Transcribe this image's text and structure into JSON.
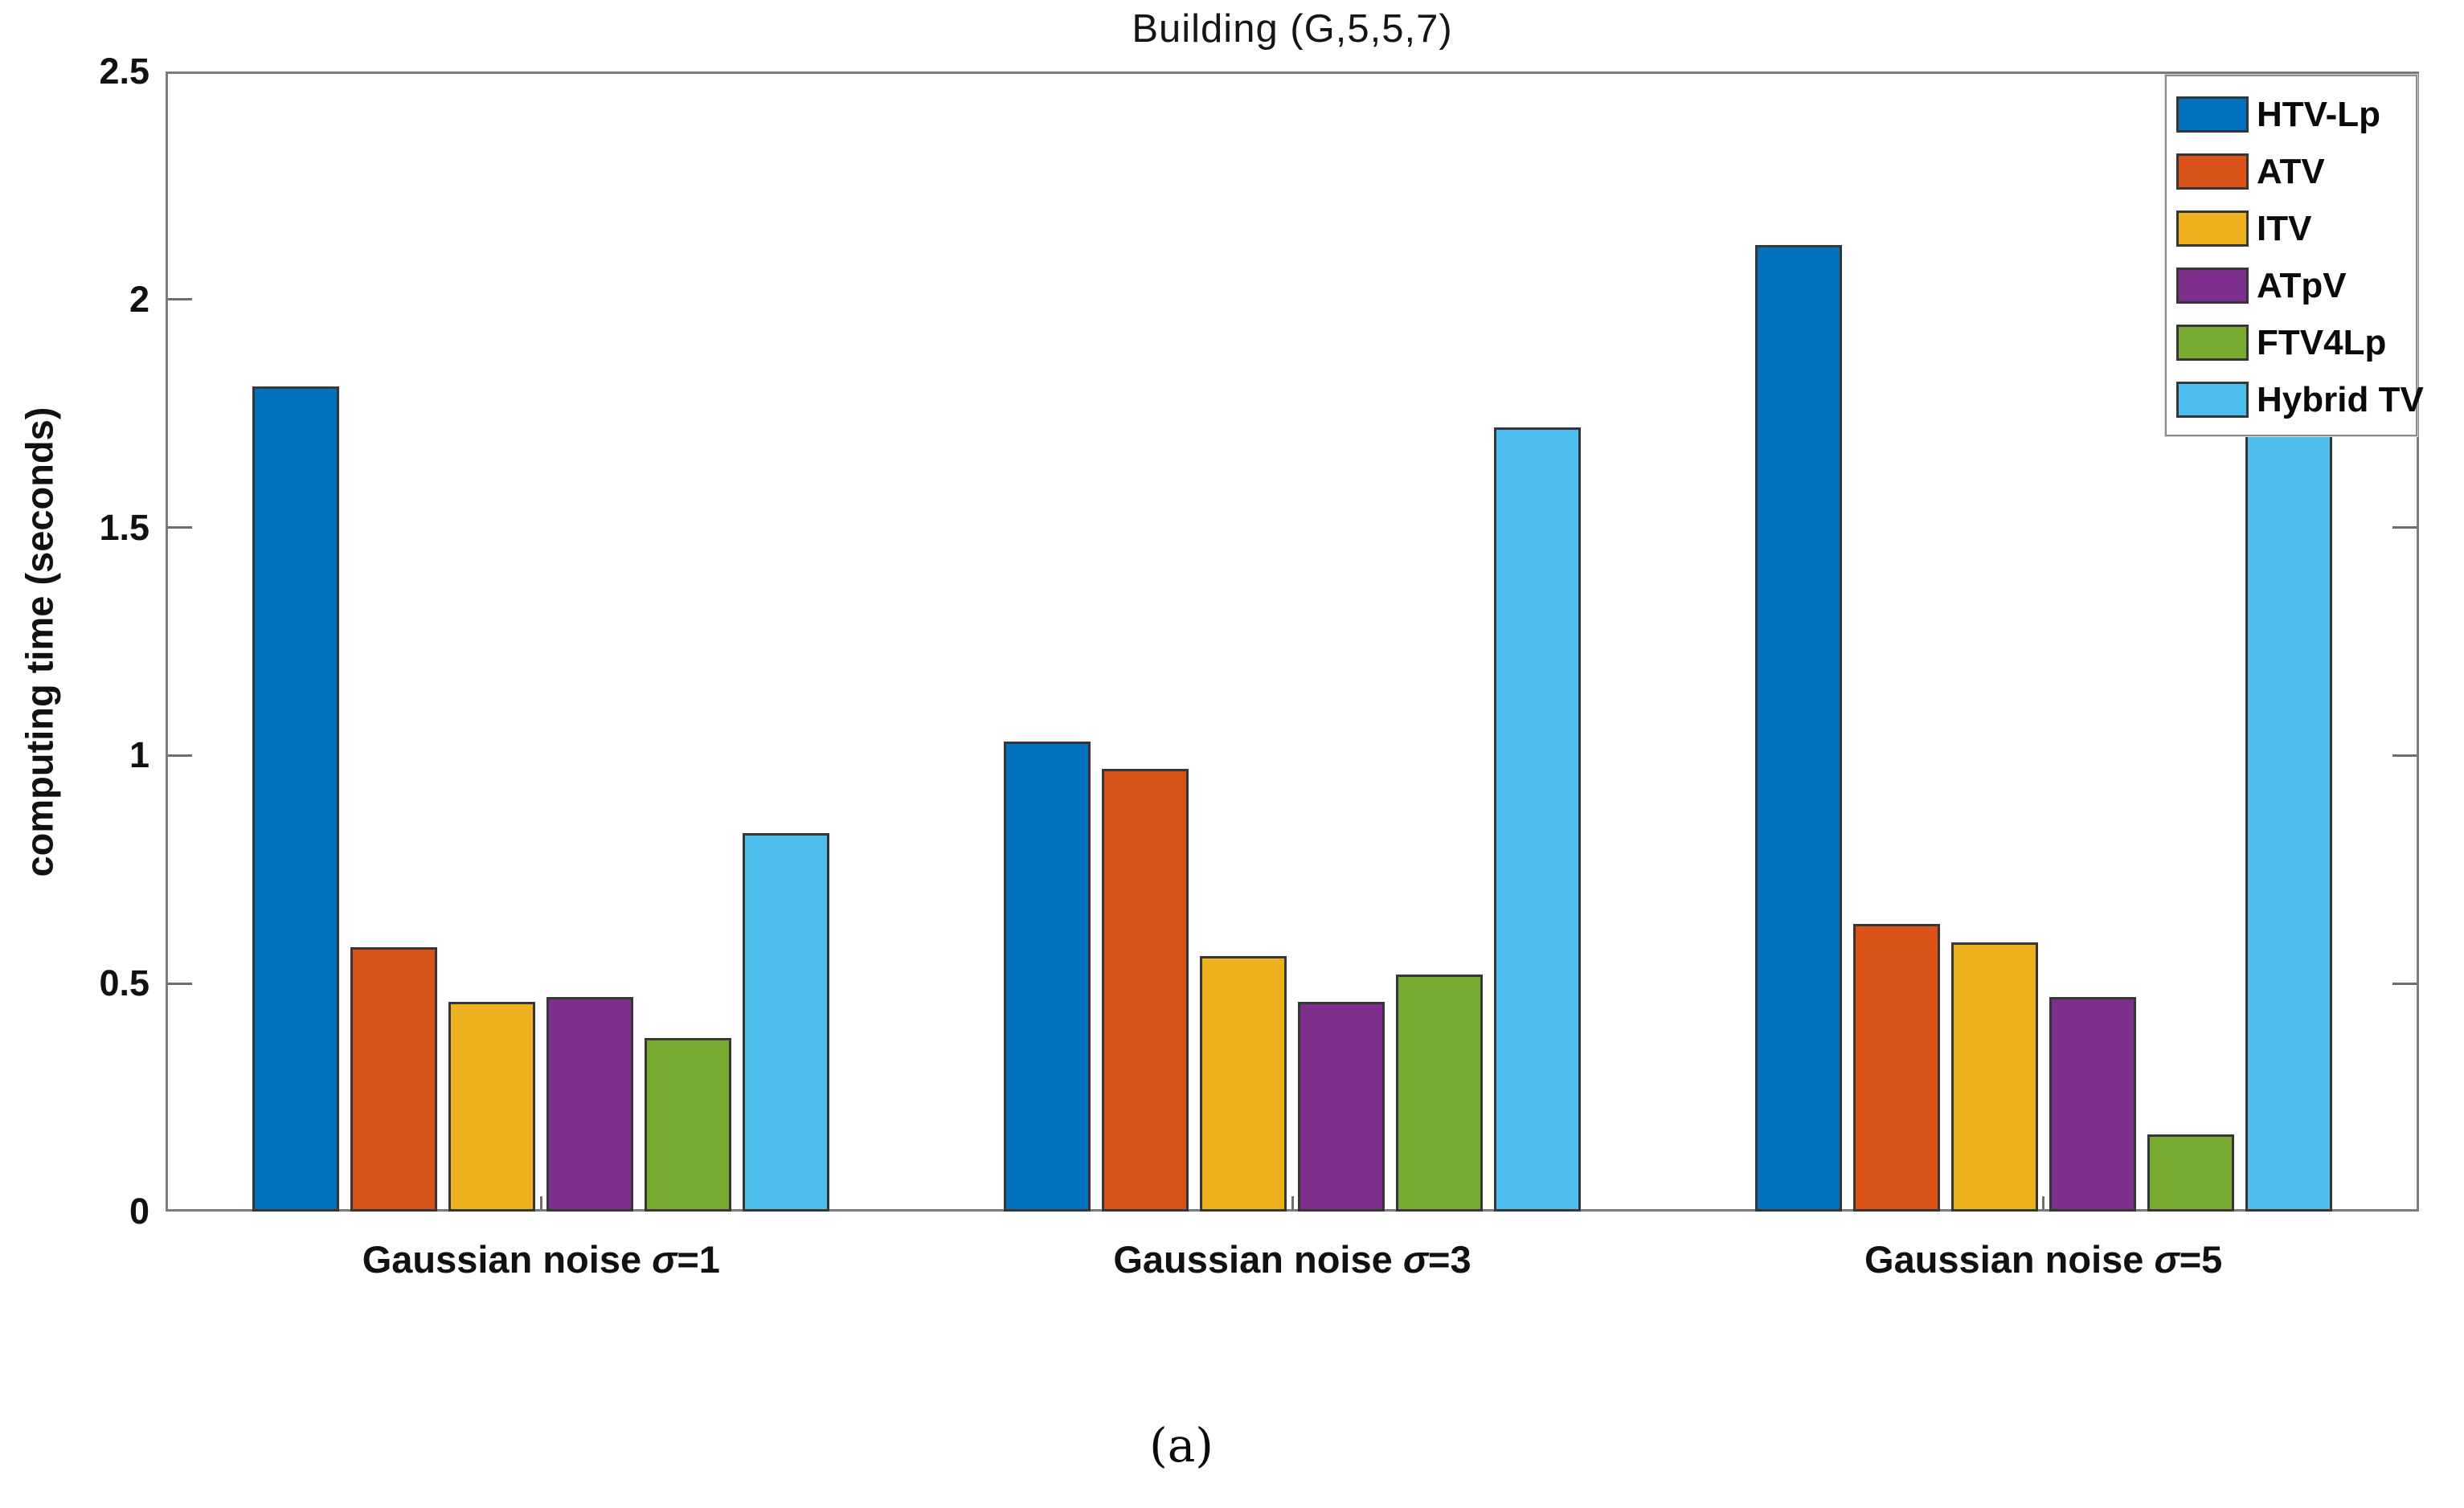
{
  "figure": {
    "title": "Building (G,5,5,7)",
    "ylabel": "computing time (seconds)",
    "caption": "(a)"
  },
  "chart_data": {
    "type": "bar",
    "title": "Building (G,5,5,7)",
    "xlabel": "",
    "ylabel": "computing time (seconds)",
    "ylim": [
      0,
      2.5
    ],
    "yticks": [
      0,
      0.5,
      1,
      1.5,
      2,
      2.5
    ],
    "ytick_labels": [
      "0",
      "0.5",
      "1",
      "1.5",
      "2",
      "2.5"
    ],
    "grid": false,
    "legend_position": "top-right",
    "categories": [
      "Gaussian noise σ=1",
      "Gaussian noise σ=3",
      "Gaussian noise σ=5"
    ],
    "series": [
      {
        "name": "HTV-Lp",
        "color": "#0072BD",
        "values": [
          1.81,
          1.03,
          2.12
        ]
      },
      {
        "name": "ATV",
        "color": "#D95319",
        "values": [
          0.58,
          0.97,
          0.63
        ]
      },
      {
        "name": "ITV",
        "color": "#EDB120",
        "values": [
          0.46,
          0.56,
          0.59
        ]
      },
      {
        "name": "ATpV",
        "color": "#7E2F8E",
        "values": [
          0.47,
          0.46,
          0.47
        ]
      },
      {
        "name": "FTV4Lp",
        "color": "#77AC30",
        "values": [
          0.38,
          0.52,
          0.17
        ]
      },
      {
        "name": "Hybrid TV",
        "color": "#4DBEEE",
        "values": [
          0.83,
          1.72,
          1.71
        ]
      }
    ]
  }
}
